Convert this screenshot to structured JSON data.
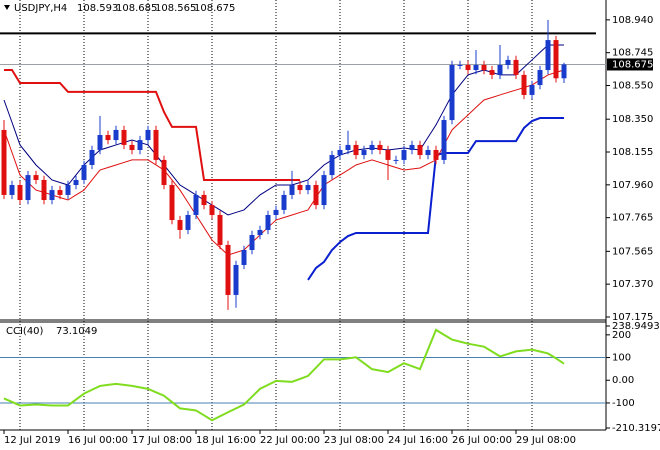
{
  "chart_data": [
    {
      "type": "candlestick",
      "title": "USDJPY,H4",
      "categories": [
        "12 Jul 2019",
        null,
        null,
        null,
        null,
        null,
        null,
        null,
        "16 Jul 00:00",
        null,
        null,
        null,
        null,
        null,
        null,
        null,
        "17 Jul 08:00",
        null,
        null,
        null,
        null,
        null,
        null,
        null,
        "18 Jul 16:00",
        null,
        null,
        null,
        null,
        null,
        null,
        null,
        "22 Jul 00:00",
        null,
        null,
        null,
        null,
        null,
        null,
        null,
        "23 Jul 08:00",
        null,
        null,
        null,
        null,
        null,
        null,
        null,
        "24 Jul 16:00",
        null,
        null,
        null,
        null,
        null,
        null,
        null,
        "26 Jul 00:00",
        null,
        null,
        null,
        null,
        null,
        null,
        null,
        "29 Jul 08:00",
        null,
        null,
        null,
        null,
        null,
        null
      ],
      "open": [
        108.286,
        107.9,
        107.959,
        107.87,
        108.018,
        107.989,
        107.87,
        107.929,
        107.9,
        107.959,
        107.989,
        108.078,
        108.167,
        108.256,
        108.226,
        108.286,
        108.197,
        108.167,
        108.226,
        108.286,
        108.108,
        107.959,
        107.751,
        107.692,
        107.781,
        107.9,
        107.84,
        107.781,
        107.603,
        107.306,
        107.484,
        107.573,
        107.662,
        107.692,
        107.781,
        107.811,
        107.9,
        107.959,
        107.929,
        107.959,
        107.84,
        108.018,
        108.137,
        108.167,
        108.197,
        108.137,
        108.167,
        108.197,
        108.167,
        108.108,
        108.108,
        108.167,
        108.197,
        108.137,
        108.167,
        108.108,
        108.345,
        108.672,
        108.672,
        108.642,
        108.672,
        108.642,
        108.613,
        108.672,
        108.702,
        108.613,
        108.494,
        108.553,
        108.642,
        108.82,
        108.593
      ],
      "high": [
        108.345,
        107.984,
        107.984,
        108.043,
        108.043,
        108.014,
        107.954,
        107.954,
        107.984,
        108.014,
        108.103,
        108.192,
        108.37,
        108.281,
        108.311,
        108.311,
        108.222,
        108.251,
        108.311,
        108.311,
        108.133,
        107.984,
        107.776,
        107.806,
        107.925,
        107.925,
        107.865,
        107.806,
        107.628,
        107.509,
        107.598,
        107.687,
        107.717,
        107.806,
        107.836,
        107.925,
        108.043,
        107.984,
        107.984,
        107.984,
        108.043,
        108.162,
        108.192,
        108.281,
        108.222,
        108.192,
        108.222,
        108.222,
        108.192,
        108.133,
        108.192,
        108.222,
        108.222,
        108.192,
        108.192,
        108.37,
        108.697,
        108.697,
        108.697,
        108.761,
        108.697,
        108.667,
        108.791,
        108.727,
        108.727,
        108.638,
        108.578,
        108.667,
        108.94,
        108.845,
        108.685
      ],
      "low": [
        107.875,
        107.875,
        107.845,
        107.845,
        107.964,
        107.845,
        107.845,
        107.875,
        107.875,
        107.934,
        107.964,
        108.053,
        108.142,
        108.201,
        108.201,
        108.172,
        108.142,
        108.142,
        108.201,
        108.083,
        107.934,
        107.726,
        107.64,
        107.667,
        107.756,
        107.815,
        107.756,
        107.578,
        107.217,
        107.23,
        107.459,
        107.548,
        107.637,
        107.667,
        107.756,
        107.786,
        107.875,
        107.904,
        107.904,
        107.815,
        107.815,
        107.993,
        108.112,
        108.142,
        108.112,
        108.112,
        108.142,
        108.142,
        107.989,
        108.083,
        108.083,
        108.142,
        108.112,
        108.112,
        108.083,
        108.083,
        108.32,
        108.647,
        108.617,
        108.617,
        108.617,
        108.588,
        108.588,
        108.647,
        108.588,
        108.469,
        108.469,
        108.528,
        108.617,
        108.568,
        108.565
      ],
      "close": [
        107.9,
        107.959,
        107.87,
        108.018,
        107.989,
        107.87,
        107.929,
        107.9,
        107.959,
        107.989,
        108.078,
        108.167,
        108.256,
        108.226,
        108.286,
        108.197,
        108.167,
        108.226,
        108.286,
        108.108,
        107.959,
        107.751,
        107.692,
        107.781,
        107.9,
        107.84,
        107.781,
        107.603,
        107.306,
        107.484,
        107.573,
        107.662,
        107.692,
        107.781,
        107.811,
        107.9,
        107.959,
        107.929,
        107.959,
        107.84,
        108.018,
        108.137,
        108.167,
        108.197,
        108.137,
        108.167,
        108.197,
        108.167,
        108.108,
        108.108,
        108.167,
        108.197,
        108.137,
        108.167,
        108.108,
        108.345,
        108.672,
        108.672,
        108.642,
        108.672,
        108.642,
        108.613,
        108.672,
        108.702,
        108.613,
        108.494,
        108.553,
        108.642,
        108.82,
        108.593,
        108.675
      ],
      "up_color": "#1a3ccc",
      "down_color": "#e01010",
      "overlays": [
        {
          "color": "#e01010",
          "width": 2,
          "values": [
            108.642,
            108.642,
            108.565,
            108.565,
            108.565,
            108.565,
            108.565,
            108.565,
            108.512,
            108.512,
            108.512,
            108.512,
            108.512,
            108.512,
            108.512,
            108.512,
            108.512,
            108.512,
            108.512,
            108.512,
            108.393,
            108.304,
            108.304,
            108.304,
            108.304,
            107.989,
            107.989,
            107.989,
            107.989,
            107.989,
            107.989,
            107.989,
            107.989,
            107.989,
            107.989,
            107.989,
            107.989,
            107.989,
            null,
            null,
            null,
            null,
            null,
            null,
            null,
            null,
            null,
            null,
            null,
            null,
            null,
            null,
            null,
            null,
            null,
            null,
            null,
            null,
            null,
            null,
            null,
            null,
            null,
            null,
            null,
            null,
            null,
            null,
            null,
            null,
            null
          ]
        },
        {
          "color": "#0a1fcf",
          "width": 2,
          "values": [
            null,
            null,
            null,
            null,
            null,
            null,
            null,
            null,
            null,
            null,
            null,
            null,
            null,
            null,
            null,
            null,
            null,
            null,
            null,
            null,
            null,
            null,
            null,
            null,
            null,
            null,
            null,
            null,
            null,
            null,
            null,
            null,
            null,
            null,
            null,
            null,
            null,
            null,
            107.395,
            107.466,
            107.502,
            107.573,
            107.62,
            107.656,
            107.674,
            107.674,
            107.674,
            107.674,
            107.674,
            107.674,
            107.674,
            107.674,
            107.674,
            107.674,
            108.137,
            108.149,
            108.149,
            108.149,
            108.149,
            108.22,
            108.22,
            108.22,
            108.22,
            108.22,
            108.22,
            108.298,
            108.339,
            108.357,
            108.357,
            108.357,
            108.357
          ]
        },
        {
          "color": "#000080",
          "width": 1,
          "values": [
            108.464,
            108.331,
            108.197,
            108.138,
            108.078,
            108.034,
            107.989,
            107.974,
            107.959,
            108.019,
            108.078,
            108.123,
            108.167,
            108.182,
            108.197,
            108.212,
            108.226,
            108.212,
            108.197,
            108.138,
            108.078,
            108.019,
            107.959,
            107.93,
            107.9,
            107.87,
            107.84,
            107.811,
            107.781,
            107.796,
            107.811,
            107.856,
            107.9,
            107.93,
            107.959,
            107.959,
            107.959,
            107.974,
            107.989,
            108.034,
            108.078,
            108.108,
            108.137,
            108.152,
            108.167,
            108.173,
            108.179,
            108.173,
            108.167,
            108.173,
            108.179,
            108.173,
            108.167,
            108.242,
            108.316,
            108.405,
            108.494,
            108.554,
            108.613,
            108.628,
            108.642,
            108.628,
            108.613,
            108.613,
            108.613,
            108.658,
            108.702,
            108.747,
            108.791,
            108.791,
            108.791
          ]
        },
        {
          "color": "#e01010",
          "width": 1,
          "values": [
            108.286,
            108.152,
            108.018,
            107.974,
            107.929,
            107.915,
            107.9,
            107.885,
            107.87,
            107.9,
            107.929,
            107.989,
            108.048,
            108.063,
            108.078,
            108.093,
            108.108,
            108.108,
            108.108,
            108.078,
            108.048,
            107.989,
            107.929,
            107.855,
            107.781,
            107.707,
            107.632,
            107.588,
            107.543,
            107.558,
            107.573,
            107.618,
            107.662,
            107.707,
            107.751,
            107.766,
            107.781,
            107.796,
            107.811,
            107.885,
            107.959,
            107.989,
            108.018,
            108.048,
            108.078,
            108.093,
            108.108,
            108.093,
            108.078,
            108.063,
            108.048,
            108.054,
            108.06,
            108.084,
            108.108,
            108.197,
            108.286,
            108.331,
            108.375,
            108.42,
            108.464,
            108.479,
            108.494,
            108.509,
            108.523,
            108.538,
            108.553,
            108.583,
            108.613,
            108.628,
            108.642
          ]
        }
      ],
      "hline": {
        "value": 108.86,
        "color": "#000000"
      },
      "ylim": [
        107.169,
        109.058
      ],
      "yticks": [
        {
          "value": 108.94,
          "label": "108.940"
        },
        108.745,
        {
          "value": 108.55,
          "label": "108.550"
        },
        {
          "value": 108.35,
          "label": "108.350"
        },
        108.155,
        {
          "value": 107.96,
          "label": "107.960"
        },
        107.765,
        107.565,
        {
          "value": 107.37,
          "label": "107.370"
        },
        107.175
      ]
    },
    {
      "type": "line",
      "title": "CCI(40)",
      "color": "#7fdc1e",
      "values": [
        -80,
        -95.5,
        -111,
        -109,
        -107,
        -109,
        -111,
        -111,
        -111,
        -85,
        -59,
        -42,
        -25,
        -20.5,
        -16,
        -20.5,
        -25,
        -31.5,
        -38,
        -53,
        -68,
        -96,
        -124,
        -128.5,
        -133,
        -154.5,
        -176,
        -158.5,
        -141,
        -124,
        -107,
        -72.5,
        -38,
        -20.5,
        -3,
        -5,
        -7,
        6,
        19,
        55.5,
        92,
        92,
        92,
        96.5,
        101,
        75,
        49,
        42.5,
        36,
        55.5,
        75,
        62,
        49,
        135.5,
        222,
        200.5,
        179,
        170,
        161,
        154.5,
        148,
        126.5,
        105,
        116,
        127,
        131,
        135,
        126.5,
        118,
        96.5,
        73.1049
      ],
      "levels": [
        100,
        -100
      ],
      "ylim": [
        -210.3197,
        238.9493
      ],
      "yticks": [
        238.9493,
        200,
        100,
        {
          "value": 0,
          "label": "0.00"
        },
        -100,
        -210.3197
      ]
    }
  ]
}
